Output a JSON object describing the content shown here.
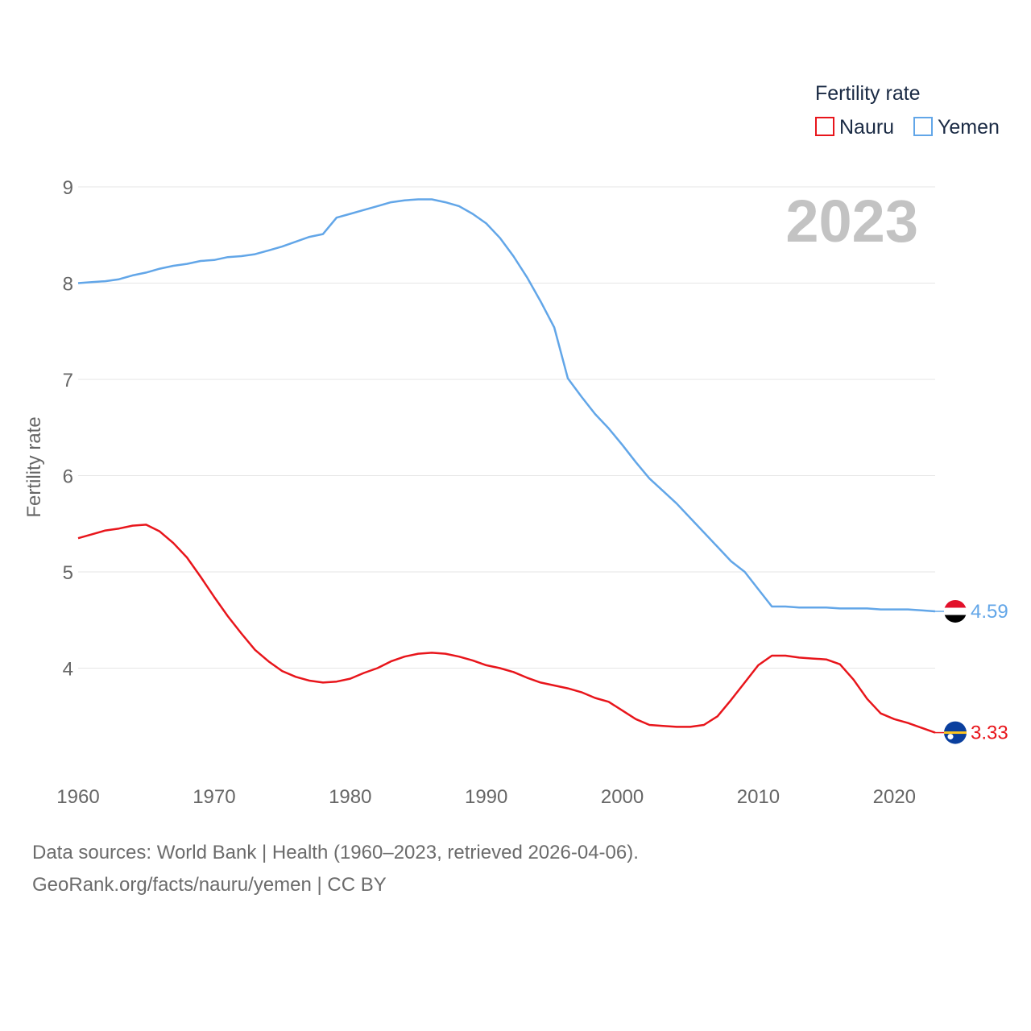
{
  "chart_data": {
    "type": "line",
    "year_badge": "2023",
    "ylabel": "Fertility rate",
    "xlabel": "",
    "xlim": [
      1960,
      2023
    ],
    "ylim": [
      3,
      9
    ],
    "x_ticks": [
      1960,
      1970,
      1980,
      1990,
      2000,
      2010,
      2020
    ],
    "y_ticks": [
      4,
      5,
      6,
      7,
      8,
      9
    ],
    "grid": true,
    "legend": {
      "title": "Fertility rate",
      "position": "top-right"
    },
    "x": [
      1960,
      1961,
      1962,
      1963,
      1964,
      1965,
      1966,
      1967,
      1968,
      1969,
      1970,
      1971,
      1972,
      1973,
      1974,
      1975,
      1976,
      1977,
      1978,
      1979,
      1980,
      1981,
      1982,
      1983,
      1984,
      1985,
      1986,
      1987,
      1988,
      1989,
      1990,
      1991,
      1992,
      1993,
      1994,
      1995,
      1996,
      1997,
      1998,
      1999,
      2000,
      2001,
      2002,
      2003,
      2004,
      2005,
      2006,
      2007,
      2008,
      2009,
      2010,
      2011,
      2012,
      2013,
      2014,
      2015,
      2016,
      2017,
      2018,
      2019,
      2020,
      2021,
      2022,
      2023
    ],
    "series": [
      {
        "name": "Nauru",
        "color": "#e8151b",
        "end_label": "3.33",
        "flag": "nauru-flag-icon",
        "values": [
          5.35,
          5.39,
          5.43,
          5.45,
          5.48,
          5.49,
          5.42,
          5.3,
          5.15,
          4.95,
          4.74,
          4.54,
          4.36,
          4.19,
          4.07,
          3.97,
          3.91,
          3.87,
          3.85,
          3.86,
          3.89,
          3.95,
          4.0,
          4.07,
          4.12,
          4.15,
          4.16,
          4.15,
          4.12,
          4.08,
          4.03,
          4.0,
          3.96,
          3.9,
          3.85,
          3.82,
          3.79,
          3.75,
          3.69,
          3.65,
          3.56,
          3.47,
          3.41,
          3.4,
          3.39,
          3.39,
          3.41,
          3.5,
          3.67,
          3.85,
          4.03,
          4.13,
          4.13,
          4.11,
          4.1,
          4.09,
          4.04,
          3.88,
          3.68,
          3.53,
          3.47,
          3.43,
          3.38,
          3.33
        ]
      },
      {
        "name": "Yemen",
        "color": "#62a6e8",
        "end_label": "4.59",
        "flag": "yemen-flag-icon",
        "values": [
          8.0,
          8.01,
          8.02,
          8.04,
          8.08,
          8.11,
          8.15,
          8.18,
          8.2,
          8.23,
          8.24,
          8.27,
          8.28,
          8.3,
          8.34,
          8.38,
          8.43,
          8.48,
          8.51,
          8.68,
          8.72,
          8.76,
          8.8,
          8.84,
          8.86,
          8.87,
          8.87,
          8.84,
          8.8,
          8.72,
          8.62,
          8.47,
          8.28,
          8.06,
          7.81,
          7.54,
          7.01,
          6.82,
          6.64,
          6.49,
          6.32,
          6.14,
          5.97,
          5.84,
          5.71,
          5.56,
          5.41,
          5.26,
          5.11,
          5.0,
          4.82,
          4.64,
          4.64,
          4.63,
          4.63,
          4.63,
          4.62,
          4.62,
          4.62,
          4.61,
          4.61,
          4.61,
          4.6,
          4.59
        ]
      }
    ]
  },
  "footer": {
    "source": "Data sources: World Bank | Health (1960–2023, retrieved 2026-04-06).",
    "url": "GeoRank.org/facts/nauru/yemen | CC BY"
  }
}
